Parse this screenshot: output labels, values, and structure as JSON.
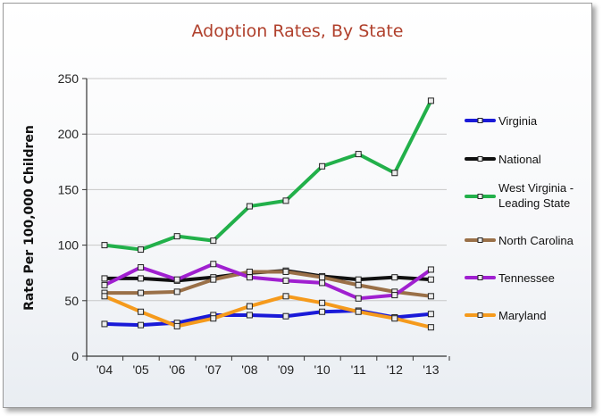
{
  "chart_data": {
    "type": "line",
    "title": "Adoption Rates, By State",
    "xlabel": "",
    "ylabel": "Rate Per 100,000 Children",
    "categories": [
      "'04",
      "'05",
      "'06",
      "'07",
      "'08",
      "'09",
      "'10",
      "'11",
      "'12",
      "'13"
    ],
    "ylim": [
      0,
      250
    ],
    "yticks": [
      0,
      50,
      100,
      150,
      200,
      250
    ],
    "grid": true,
    "legend_position": "right",
    "series": [
      {
        "name": "Virginia",
        "color": "#1a1ad8",
        "values": [
          29,
          28,
          30,
          37,
          37,
          36,
          40,
          41,
          35,
          38
        ]
      },
      {
        "name": "National",
        "color": "#111111",
        "values": [
          70,
          70,
          68,
          71,
          75,
          77,
          72,
          69,
          71,
          69
        ]
      },
      {
        "name": "West Virginia - Leading State",
        "color": "#22b04a",
        "values": [
          100,
          96,
          108,
          104,
          135,
          140,
          171,
          182,
          165,
          230
        ]
      },
      {
        "name": "North Carolina",
        "color": "#9a7048",
        "values": [
          57,
          57,
          58,
          69,
          76,
          76,
          71,
          64,
          58,
          54
        ]
      },
      {
        "name": "Tennessee",
        "color": "#a020d0",
        "values": [
          64,
          80,
          69,
          83,
          71,
          68,
          66,
          52,
          55,
          78
        ]
      },
      {
        "name": "Maryland",
        "color": "#f59a1c",
        "values": [
          54,
          40,
          27,
          34,
          45,
          54,
          48,
          40,
          34,
          26
        ]
      }
    ]
  }
}
